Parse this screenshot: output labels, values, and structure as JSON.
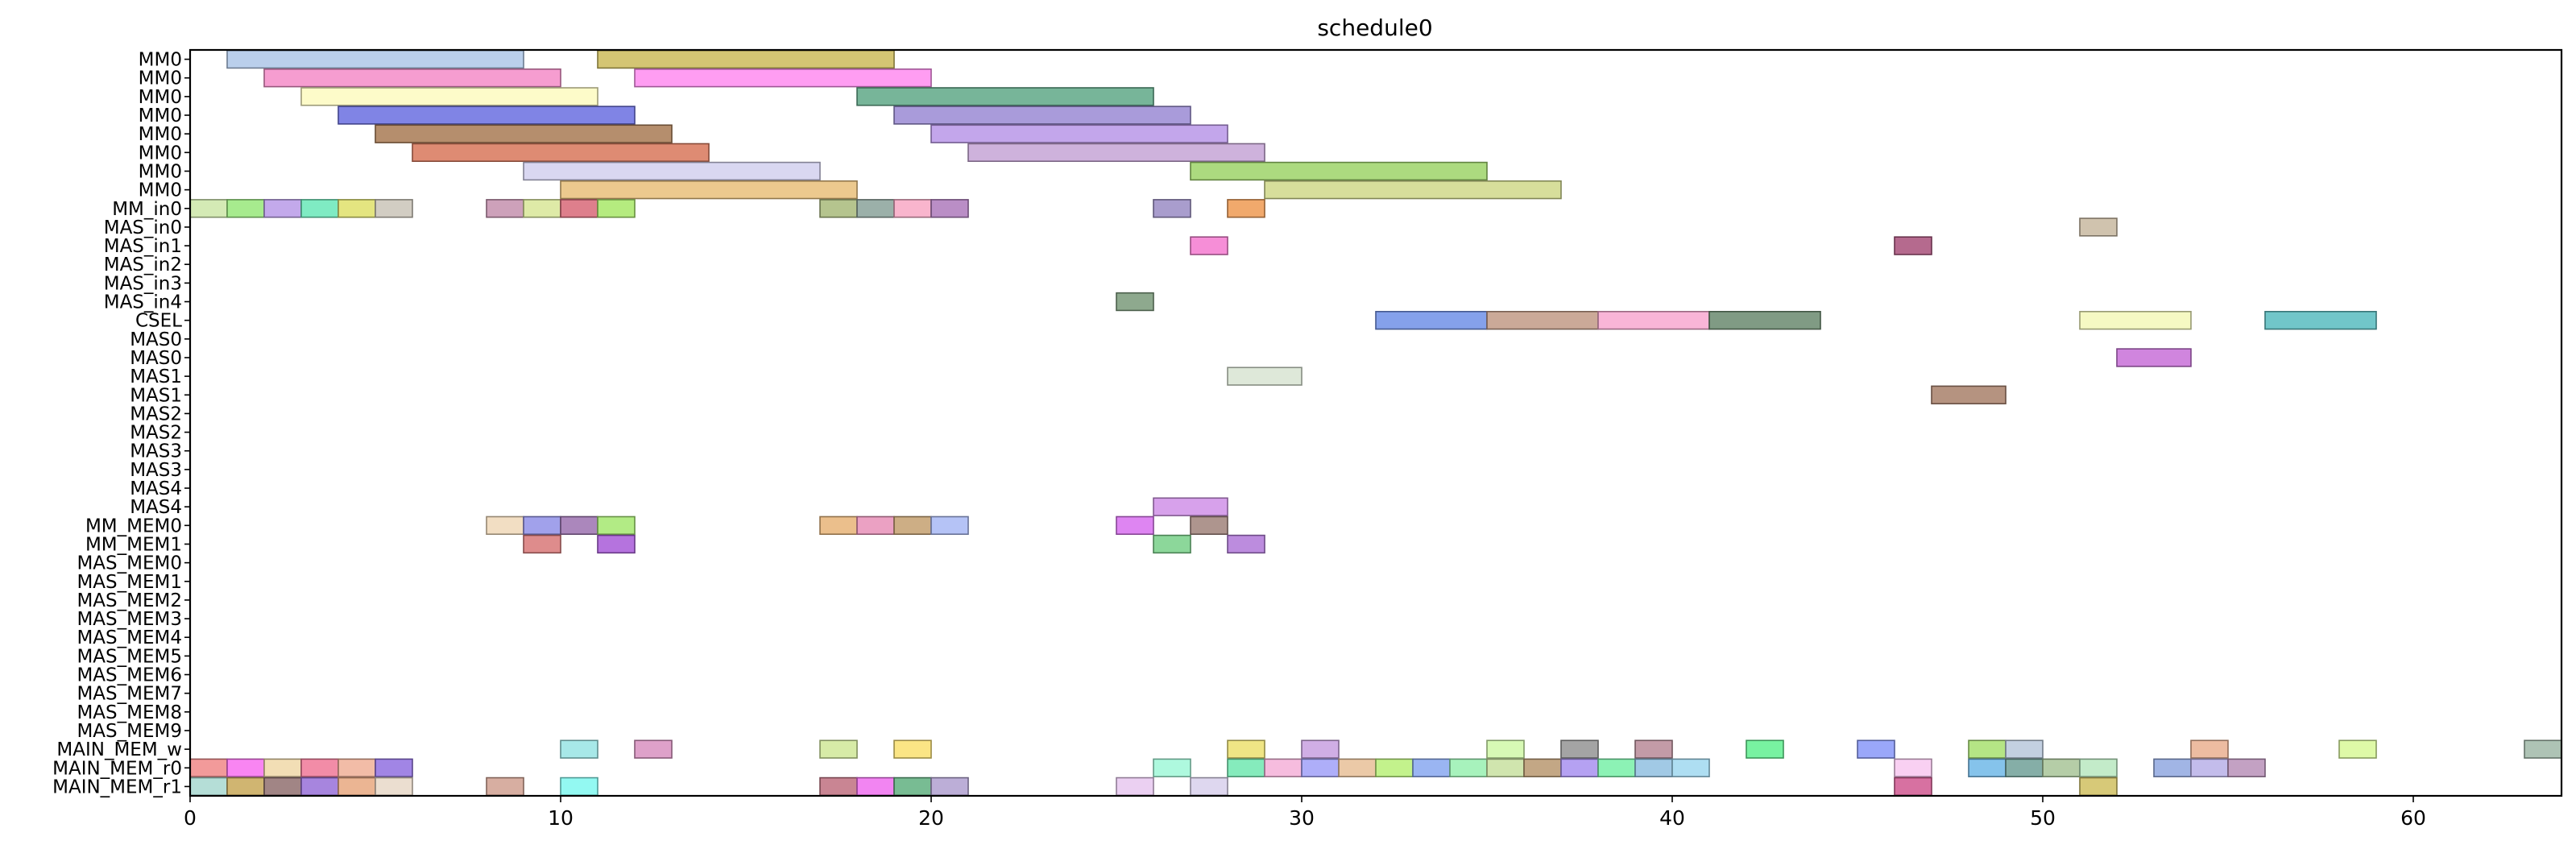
{
  "chart_data": {
    "type": "gantt",
    "title": "schedule0",
    "xlabel": "",
    "ylabel": "",
    "xlim": [
      0,
      64
    ],
    "x_ticks": [
      "0",
      "10",
      "20",
      "30",
      "40",
      "50",
      "60"
    ],
    "grid": false,
    "rows": [
      "MM0",
      "MM0",
      "MM0",
      "MM0",
      "MM0",
      "MM0",
      "MM0",
      "MM0",
      "MM_in0",
      "MAS_in0",
      "MAS_in1",
      "MAS_in2",
      "MAS_in3",
      "MAS_in4",
      "CSEL",
      "MAS0",
      "MAS0",
      "MAS1",
      "MAS1",
      "MAS2",
      "MAS2",
      "MAS3",
      "MAS3",
      "MAS4",
      "MAS4",
      "MM_MEM0",
      "MM_MEM1",
      "MAS_MEM0",
      "MAS_MEM1",
      "MAS_MEM2",
      "MAS_MEM3",
      "MAS_MEM4",
      "MAS_MEM5",
      "MAS_MEM6",
      "MAS_MEM7",
      "MAS_MEM8",
      "MAS_MEM9",
      "MAIN_MEM_w",
      "MAIN_MEM_r0",
      "MAIN_MEM_r1"
    ],
    "tasks": [
      {
        "row": 0,
        "start": 1,
        "end": 9,
        "color": "#aec7e8"
      },
      {
        "row": 0,
        "start": 11,
        "end": 19,
        "color": "#cdbb5a"
      },
      {
        "row": 1,
        "start": 2,
        "end": 10,
        "color": "#f48cc8"
      },
      {
        "row": 1,
        "start": 12,
        "end": 20,
        "color": "#ff8cf0"
      },
      {
        "row": 2,
        "start": 3,
        "end": 11,
        "color": "#fdfac0"
      },
      {
        "row": 2,
        "start": 18,
        "end": 26,
        "color": "#5fa887"
      },
      {
        "row": 3,
        "start": 4,
        "end": 12,
        "color": "#6a6ee0"
      },
      {
        "row": 3,
        "start": 19,
        "end": 27,
        "color": "#9a8ad4"
      },
      {
        "row": 4,
        "start": 5,
        "end": 13,
        "color": "#a87a54"
      },
      {
        "row": 4,
        "start": 20,
        "end": 28,
        "color": "#b996e8"
      },
      {
        "row": 5,
        "start": 6,
        "end": 14,
        "color": "#d8775a"
      },
      {
        "row": 5,
        "start": 21,
        "end": 29,
        "color": "#c6a4d6"
      },
      {
        "row": 6,
        "start": 9,
        "end": 17,
        "color": "#d2d0ee"
      },
      {
        "row": 6,
        "start": 27,
        "end": 35,
        "color": "#9ed468"
      },
      {
        "row": 7,
        "start": 10,
        "end": 18,
        "color": "#e9c07a"
      },
      {
        "row": 7,
        "start": 29,
        "end": 37,
        "color": "#d0d88a"
      },
      {
        "row": 8,
        "start": 0,
        "end": 1,
        "color": "#cde6a8"
      },
      {
        "row": 8,
        "start": 1,
        "end": 2,
        "color": "#98e87a"
      },
      {
        "row": 8,
        "start": 2,
        "end": 3,
        "color": "#b89ae8"
      },
      {
        "row": 8,
        "start": 3,
        "end": 4,
        "color": "#68e8b8"
      },
      {
        "row": 8,
        "start": 4,
        "end": 5,
        "color": "#dfe06a"
      },
      {
        "row": 8,
        "start": 5,
        "end": 6,
        "color": "#cac4b8"
      },
      {
        "row": 8,
        "start": 8,
        "end": 9,
        "color": "#c490ae"
      },
      {
        "row": 8,
        "start": 9,
        "end": 10,
        "color": "#d8e698"
      },
      {
        "row": 8,
        "start": 10,
        "end": 11,
        "color": "#d86878"
      },
      {
        "row": 8,
        "start": 11,
        "end": 12,
        "color": "#a8e868"
      },
      {
        "row": 8,
        "start": 17,
        "end": 18,
        "color": "#a8ba7a"
      },
      {
        "row": 8,
        "start": 18,
        "end": 19,
        "color": "#8aa29a"
      },
      {
        "row": 8,
        "start": 19,
        "end": 20,
        "color": "#f8a8c4"
      },
      {
        "row": 8,
        "start": 20,
        "end": 21,
        "color": "#ae7abc"
      },
      {
        "row": 8,
        "start": 26,
        "end": 27,
        "color": "#9a8cc4"
      },
      {
        "row": 8,
        "start": 28,
        "end": 29,
        "color": "#ee9a52"
      },
      {
        "row": 9,
        "start": 51,
        "end": 52,
        "color": "#c8b8a0"
      },
      {
        "row": 10,
        "start": 27,
        "end": 28,
        "color": "#f47ad0"
      },
      {
        "row": 10,
        "start": 46,
        "end": 47,
        "color": "#a8507a"
      },
      {
        "row": 13,
        "start": 25,
        "end": 26,
        "color": "#7a9a7a"
      },
      {
        "row": 14,
        "start": 32,
        "end": 35,
        "color": "#7090e8"
      },
      {
        "row": 14,
        "start": 35,
        "end": 38,
        "color": "#c29a86"
      },
      {
        "row": 14,
        "start": 38,
        "end": 41,
        "color": "#f8a8d0"
      },
      {
        "row": 14,
        "start": 41,
        "end": 44,
        "color": "#6a8a6e"
      },
      {
        "row": 14,
        "start": 51,
        "end": 54,
        "color": "#f4f8b8"
      },
      {
        "row": 14,
        "start": 56,
        "end": 59,
        "color": "#58bcc0"
      },
      {
        "row": 16,
        "start": 52,
        "end": 54,
        "color": "#c870d8"
      },
      {
        "row": 17,
        "start": 28,
        "end": 30,
        "color": "#d8e4d2"
      },
      {
        "row": 18,
        "start": 47,
        "end": 49,
        "color": "#a8806a"
      },
      {
        "row": 24,
        "start": 26,
        "end": 28,
        "color": "#d090e8"
      },
      {
        "row": 25,
        "start": 8,
        "end": 9,
        "color": "#f0d8b8"
      },
      {
        "row": 25,
        "start": 9,
        "end": 10,
        "color": "#9090e8"
      },
      {
        "row": 25,
        "start": 10,
        "end": 11,
        "color": "#9c72b0"
      },
      {
        "row": 25,
        "start": 11,
        "end": 12,
        "color": "#a4e870"
      },
      {
        "row": 25,
        "start": 17,
        "end": 18,
        "color": "#e8b478"
      },
      {
        "row": 25,
        "start": 18,
        "end": 19,
        "color": "#e890b8"
      },
      {
        "row": 25,
        "start": 19,
        "end": 20,
        "color": "#c4a070"
      },
      {
        "row": 25,
        "start": 20,
        "end": 21,
        "color": "#a8b8f4"
      },
      {
        "row": 25,
        "start": 25,
        "end": 26,
        "color": "#d870f0"
      },
      {
        "row": 25,
        "start": 27,
        "end": 28,
        "color": "#a0827a"
      },
      {
        "row": 26,
        "start": 9,
        "end": 10,
        "color": "#d87878"
      },
      {
        "row": 26,
        "start": 11,
        "end": 12,
        "color": "#a85ad8"
      },
      {
        "row": 26,
        "start": 26,
        "end": 27,
        "color": "#78d088"
      },
      {
        "row": 26,
        "start": 28,
        "end": 29,
        "color": "#b078d8"
      },
      {
        "row": 37,
        "start": 10,
        "end": 11,
        "color": "#98e4e4"
      },
      {
        "row": 37,
        "start": 12,
        "end": 13,
        "color": "#d890c0"
      },
      {
        "row": 37,
        "start": 17,
        "end": 18,
        "color": "#d0e898"
      },
      {
        "row": 37,
        "start": 19,
        "end": 20,
        "color": "#fae070"
      },
      {
        "row": 37,
        "start": 28,
        "end": 29,
        "color": "#ece070"
      },
      {
        "row": 37,
        "start": 30,
        "end": 31,
        "color": "#c8a0e0"
      },
      {
        "row": 37,
        "start": 35,
        "end": 36,
        "color": "#d0f8a8"
      },
      {
        "row": 37,
        "start": 37,
        "end": 38,
        "color": "#949494"
      },
      {
        "row": 37,
        "start": 39,
        "end": 40,
        "color": "#b88a98"
      },
      {
        "row": 37,
        "start": 42,
        "end": 43,
        "color": "#60f090"
      },
      {
        "row": 37,
        "start": 45,
        "end": 46,
        "color": "#8898f8"
      },
      {
        "row": 37,
        "start": 48,
        "end": 49,
        "color": "#a8e070"
      },
      {
        "row": 37,
        "start": 49,
        "end": 50,
        "color": "#b8c8dc"
      },
      {
        "row": 37,
        "start": 54,
        "end": 55,
        "color": "#eab090"
      },
      {
        "row": 37,
        "start": 58,
        "end": 59,
        "color": "#d8f898"
      },
      {
        "row": 37,
        "start": 63,
        "end": 64,
        "color": "#a0b8a8"
      },
      {
        "row": 38,
        "start": 0,
        "end": 1,
        "color": "#f08888"
      },
      {
        "row": 38,
        "start": 1,
        "end": 2,
        "color": "#f870f0"
      },
      {
        "row": 38,
        "start": 2,
        "end": 3,
        "color": "#f0d8a8"
      },
      {
        "row": 38,
        "start": 3,
        "end": 4,
        "color": "#f07898"
      },
      {
        "row": 38,
        "start": 4,
        "end": 5,
        "color": "#f0b098"
      },
      {
        "row": 38,
        "start": 5,
        "end": 6,
        "color": "#9070e0"
      },
      {
        "row": 38,
        "start": 26,
        "end": 27,
        "color": "#a0f8d8"
      },
      {
        "row": 38,
        "start": 28,
        "end": 29,
        "color": "#70e8b0"
      },
      {
        "row": 38,
        "start": 29,
        "end": 30,
        "color": "#f4b0d8"
      },
      {
        "row": 38,
        "start": 30,
        "end": 31,
        "color": "#a0a0f8"
      },
      {
        "row": 38,
        "start": 31,
        "end": 32,
        "color": "#e8c098"
      },
      {
        "row": 38,
        "start": 32,
        "end": 33,
        "color": "#b8f078"
      },
      {
        "row": 38,
        "start": 33,
        "end": 34,
        "color": "#88a8f0"
      },
      {
        "row": 38,
        "start": 34,
        "end": 35,
        "color": "#98f0b0"
      },
      {
        "row": 38,
        "start": 35,
        "end": 36,
        "color": "#c8e0a0"
      },
      {
        "row": 38,
        "start": 36,
        "end": 37,
        "color": "#b89870"
      },
      {
        "row": 38,
        "start": 37,
        "end": 38,
        "color": "#a890f0"
      },
      {
        "row": 38,
        "start": 38,
        "end": 39,
        "color": "#78f0a8"
      },
      {
        "row": 38,
        "start": 39,
        "end": 40,
        "color": "#90c0e0"
      },
      {
        "row": 38,
        "start": 40,
        "end": 41,
        "color": "#a0d8f0"
      },
      {
        "row": 38,
        "start": 46,
        "end": 47,
        "color": "#f8c8f0"
      },
      {
        "row": 38,
        "start": 48,
        "end": 49,
        "color": "#70b8e8"
      },
      {
        "row": 38,
        "start": 49,
        "end": 50,
        "color": "#70a098"
      },
      {
        "row": 38,
        "start": 50,
        "end": 51,
        "color": "#a8c498"
      },
      {
        "row": 38,
        "start": 51,
        "end": 52,
        "color": "#b8e8c0"
      },
      {
        "row": 38,
        "start": 53,
        "end": 54,
        "color": "#90a8e0"
      },
      {
        "row": 38,
        "start": 54,
        "end": 55,
        "color": "#b8b0e8"
      },
      {
        "row": 38,
        "start": 55,
        "end": 56,
        "color": "#b890b8"
      },
      {
        "row": 39,
        "start": 0,
        "end": 1,
        "color": "#a8d8d0"
      },
      {
        "row": 39,
        "start": 1,
        "end": 2,
        "color": "#c8a858"
      },
      {
        "row": 39,
        "start": 2,
        "end": 3,
        "color": "#907070"
      },
      {
        "row": 39,
        "start": 3,
        "end": 4,
        "color": "#9870d8"
      },
      {
        "row": 39,
        "start": 4,
        "end": 5,
        "color": "#e8a880"
      },
      {
        "row": 39,
        "start": 5,
        "end": 6,
        "color": "#e8d8c8"
      },
      {
        "row": 39,
        "start": 8,
        "end": 9,
        "color": "#d0a090"
      },
      {
        "row": 39,
        "start": 10,
        "end": 11,
        "color": "#80f8f0"
      },
      {
        "row": 39,
        "start": 17,
        "end": 18,
        "color": "#c07080"
      },
      {
        "row": 39,
        "start": 18,
        "end": 19,
        "color": "#f070f0"
      },
      {
        "row": 39,
        "start": 19,
        "end": 20,
        "color": "#60b080"
      },
      {
        "row": 39,
        "start": 20,
        "end": 21,
        "color": "#b0a0d0"
      },
      {
        "row": 39,
        "start": 25,
        "end": 26,
        "color": "#e8c8f0"
      },
      {
        "row": 39,
        "start": 27,
        "end": 28,
        "color": "#d8d0ec"
      },
      {
        "row": 39,
        "start": 46,
        "end": 47,
        "color": "#d05890"
      },
      {
        "row": 39,
        "start": 51,
        "end": 52,
        "color": "#d0c060"
      }
    ]
  }
}
